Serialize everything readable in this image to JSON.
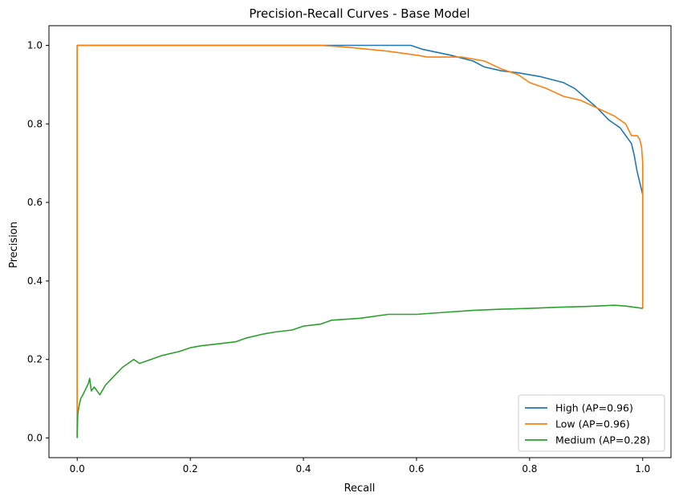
{
  "chart_data": {
    "type": "line",
    "title": "Precision-Recall Curves - Base Model",
    "xlabel": "Recall",
    "ylabel": "Precision",
    "xlim": [
      -0.05,
      1.05
    ],
    "ylim": [
      -0.05,
      1.05
    ],
    "xticks": [
      "0.0",
      "0.2",
      "0.4",
      "0.6",
      "0.8",
      "1.0"
    ],
    "yticks": [
      "0.0",
      "0.2",
      "0.4",
      "0.6",
      "0.8",
      "1.0"
    ],
    "grid": false,
    "legend_position": "lower-right",
    "series": [
      {
        "name": "High (AP=0.96)",
        "color": "#1f77b4",
        "x": [
          0.0,
          0.0,
          0.43,
          0.59,
          0.61,
          0.66,
          0.7,
          0.72,
          0.75,
          0.78,
          0.82,
          0.86,
          0.88,
          0.9,
          0.92,
          0.94,
          0.96,
          0.97,
          0.98,
          0.985,
          0.99,
          0.995,
          1.0
        ],
        "y": [
          0.0,
          1.0,
          1.0,
          1.0,
          0.99,
          0.975,
          0.96,
          0.945,
          0.935,
          0.93,
          0.92,
          0.905,
          0.89,
          0.865,
          0.84,
          0.81,
          0.79,
          0.77,
          0.75,
          0.72,
          0.68,
          0.65,
          0.62
        ]
      },
      {
        "name": "Low (AP=0.96)",
        "color": "#ff7f0e",
        "x": [
          0.0,
          0.0,
          0.43,
          0.48,
          0.55,
          0.6,
          0.62,
          0.68,
          0.72,
          0.75,
          0.78,
          0.8,
          0.83,
          0.86,
          0.89,
          0.92,
          0.95,
          0.97,
          0.98,
          0.99,
          0.995,
          0.998,
          1.0,
          1.0,
          1.0
        ],
        "y": [
          0.0,
          1.0,
          1.0,
          0.995,
          0.985,
          0.975,
          0.97,
          0.97,
          0.96,
          0.94,
          0.925,
          0.905,
          0.89,
          0.87,
          0.86,
          0.84,
          0.82,
          0.8,
          0.77,
          0.77,
          0.76,
          0.74,
          0.7,
          0.5,
          0.33
        ]
      },
      {
        "name": "Medium (AP=0.28)",
        "color": "#2ca02c",
        "x": [
          0.0,
          0.001,
          0.003,
          0.006,
          0.01,
          0.015,
          0.02,
          0.022,
          0.025,
          0.03,
          0.035,
          0.04,
          0.05,
          0.06,
          0.07,
          0.08,
          0.09,
          0.1,
          0.11,
          0.12,
          0.13,
          0.15,
          0.18,
          0.2,
          0.22,
          0.25,
          0.28,
          0.3,
          0.33,
          0.35,
          0.38,
          0.4,
          0.43,
          0.45,
          0.5,
          0.55,
          0.6,
          0.65,
          0.7,
          0.75,
          0.8,
          0.85,
          0.9,
          0.95,
          0.97,
          1.0
        ],
        "y": [
          0.0,
          0.06,
          0.08,
          0.1,
          0.11,
          0.125,
          0.14,
          0.152,
          0.12,
          0.13,
          0.12,
          0.11,
          0.135,
          0.15,
          0.165,
          0.18,
          0.19,
          0.2,
          0.19,
          0.195,
          0.2,
          0.21,
          0.22,
          0.23,
          0.235,
          0.24,
          0.245,
          0.255,
          0.265,
          0.27,
          0.275,
          0.285,
          0.29,
          0.3,
          0.305,
          0.315,
          0.315,
          0.32,
          0.325,
          0.328,
          0.33,
          0.333,
          0.335,
          0.338,
          0.336,
          0.33
        ]
      }
    ]
  }
}
